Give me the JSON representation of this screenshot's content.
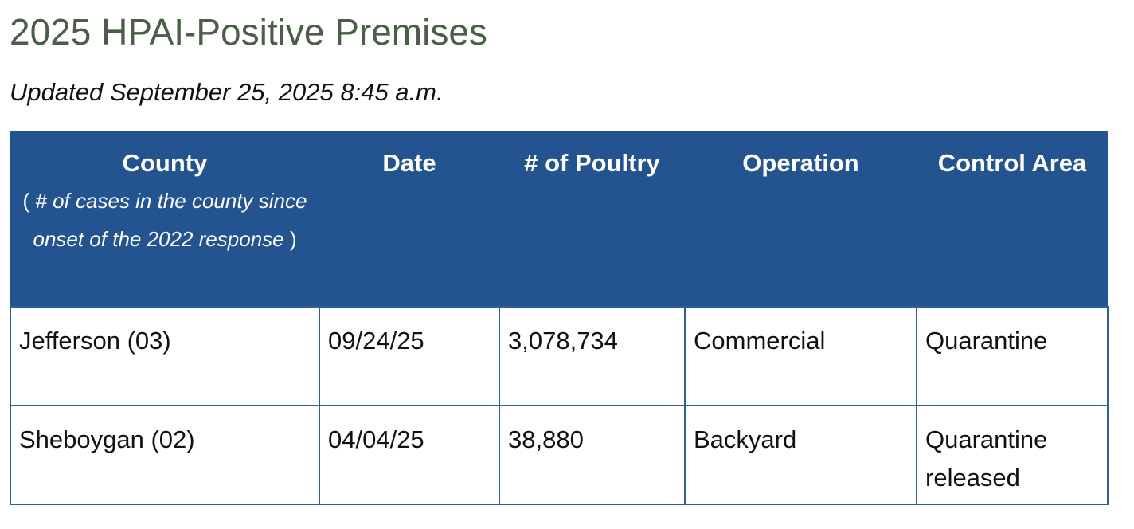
{
  "page": {
    "title": "2025 HPAI-Positive Premises",
    "updated": "Updated September 25, 2025 8:45 a.m."
  },
  "table": {
    "header_color": "#24548f",
    "headers": {
      "county": "County",
      "county_sub_open": "( ",
      "county_sub_text": "# of cases in the county since onset of the 2022 response",
      "county_sub_close": " )",
      "date": "Date",
      "poultry": "# of Poultry",
      "operation": "Operation",
      "control_area": "Control Area"
    },
    "rows": [
      {
        "county": "Jefferson (03)",
        "date": "09/24/25",
        "poultry": "3,078,734",
        "operation": "Commercial",
        "control_area": "Quarantine"
      },
      {
        "county": "Sheboygan (02)",
        "date": "04/04/25",
        "poultry": "38,880",
        "operation": "Backyard",
        "control_area": "Quarantine released"
      }
    ]
  }
}
